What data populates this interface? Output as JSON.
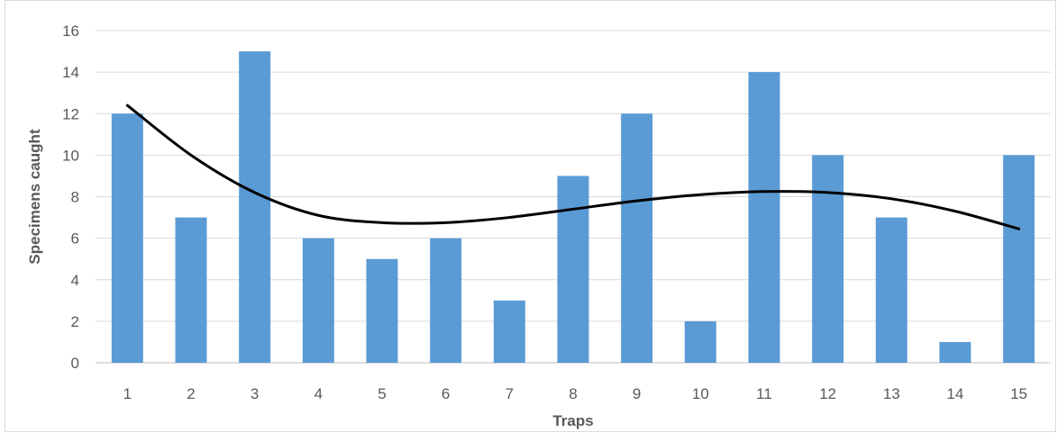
{
  "chart_data": {
    "type": "bar",
    "title": "",
    "xlabel": "Traps",
    "ylabel": "Specimens caught",
    "categories": [
      "1",
      "2",
      "3",
      "4",
      "5",
      "6",
      "7",
      "8",
      "9",
      "10",
      "11",
      "12",
      "13",
      "14",
      "15"
    ],
    "series": [
      {
        "values": [
          12,
          7,
          15,
          6,
          5,
          6,
          3,
          9,
          12,
          2,
          14,
          10,
          7,
          1,
          10
        ]
      }
    ],
    "y_ticks": [
      "0",
      "2",
      "4",
      "6",
      "8",
      "10",
      "12",
      "14",
      "16"
    ],
    "ylim": [
      0,
      16
    ],
    "grid": true,
    "legend": "none",
    "bar_color": "#5b9bd5",
    "trendline": {
      "type": "polynomial",
      "color": "#000000",
      "x": [
        1,
        2,
        3,
        4,
        5,
        6,
        7,
        8,
        9,
        10,
        11,
        12,
        13,
        14,
        15
      ],
      "y": [
        12.4,
        10.0,
        8.2,
        7.1,
        6.75,
        6.75,
        7.0,
        7.4,
        7.8,
        8.1,
        8.25,
        8.2,
        7.9,
        7.3,
        6.45
      ]
    }
  }
}
